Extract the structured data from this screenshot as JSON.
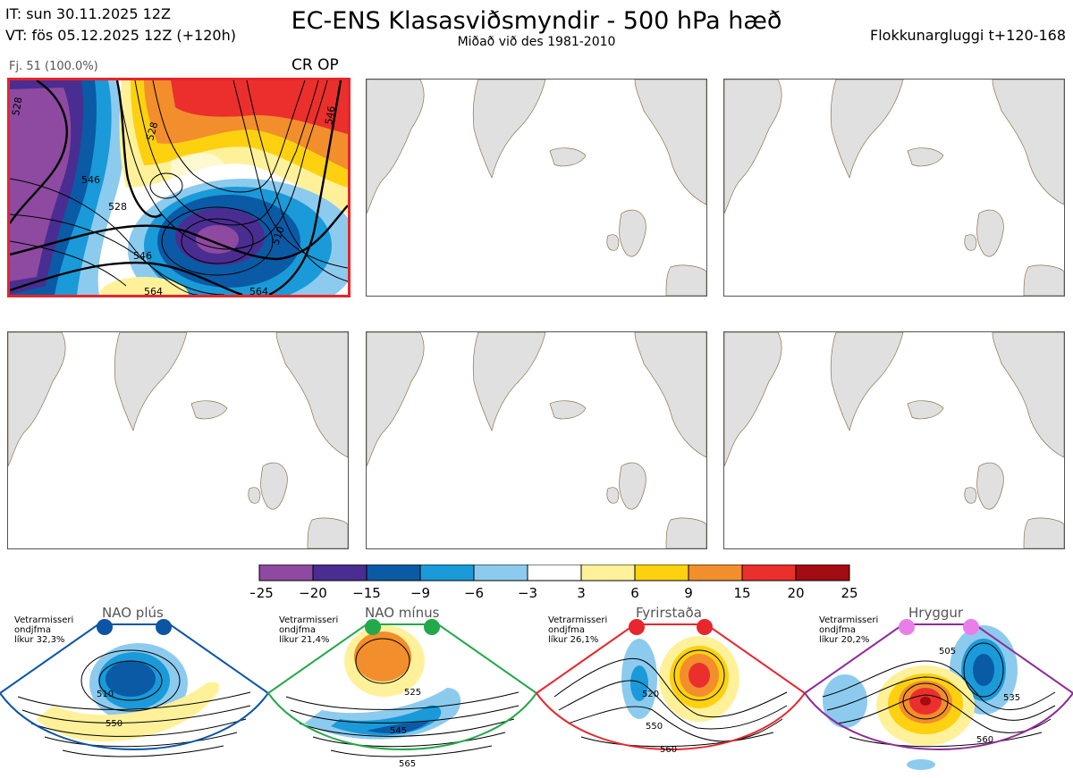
{
  "header": {
    "init_time": "IT: sun 30.11.2025 12Z",
    "valid_time": "VT: fös 05.12.2025 12Z  (+120h)",
    "title": "EC-ENS Klasasviðsmyndir - 500 hPa hæð",
    "subtitle": "Miðað við des 1981-2010",
    "window": "Flokkunargluggi t+120-168"
  },
  "cluster": {
    "label": "Fj. 51 (100.0%)",
    "tag": "CR OP",
    "highlight_color": "#e8242a",
    "contour_labels": [
      "528",
      "546",
      "510",
      "528",
      "546",
      "528",
      "546",
      "564",
      "564"
    ]
  },
  "colorbar": {
    "ticks": [
      "−25",
      "−20",
      "−15",
      "−9",
      "−6",
      "−3",
      "3",
      "6",
      "9",
      "15",
      "20",
      "25"
    ],
    "colors": [
      "#8e4aa0",
      "#4a2d91",
      "#0b5aa6",
      "#1a9ad8",
      "#8ccbee",
      "#ffffff",
      "#fff19a",
      "#fdd10f",
      "#f28e2b",
      "#ea2f2d",
      "#a20c12"
    ]
  },
  "regimes": [
    {
      "name": "NAO plús",
      "note": [
        "Vetrarmisseri",
        "ondjfma",
        "líkur 32,3%"
      ],
      "color": "#0b55a4",
      "labels": [
        "510",
        "550"
      ]
    },
    {
      "name": "NAO mínus",
      "note": [
        "Vetrarmisseri",
        "ondjfma",
        "líkur 21,4%"
      ],
      "color": "#23a84a",
      "labels": [
        "525",
        "545",
        "565"
      ]
    },
    {
      "name": "Fyrirstaða",
      "note": [
        "Vetrarmisseri",
        "ondjfma",
        "líkur 26,1%"
      ],
      "color": "#e8262d",
      "labels": [
        "520",
        "550",
        "560"
      ]
    },
    {
      "name": "Hryggur",
      "note": [
        "Vetrarmisseri",
        "ondjfma",
        "líkur 20,2%"
      ],
      "color": "#8e2c96",
      "labels": [
        "505",
        "535",
        "560"
      ]
    }
  ]
}
